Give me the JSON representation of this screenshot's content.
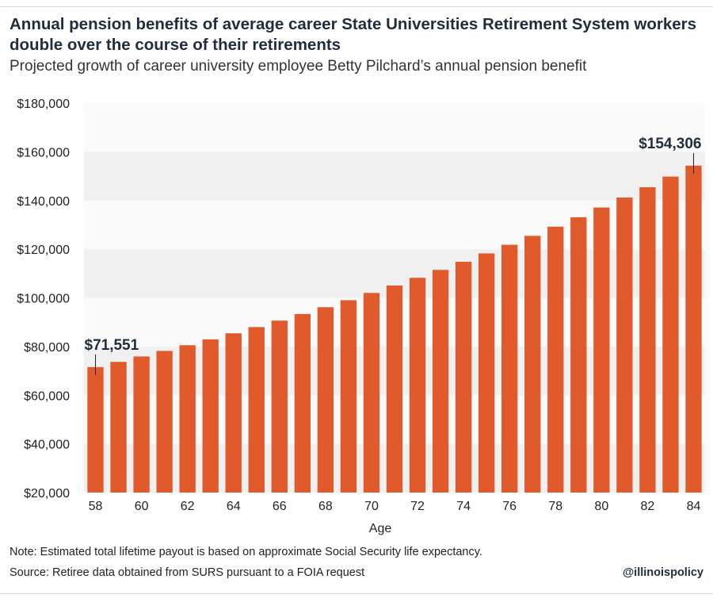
{
  "title": "Annual pension benefits of average career State Universities Retirement System workers double over the course of their retirements",
  "subtitle": "Projected growth of career university employee Betty Pilchard’s annual pension benefit",
  "note": "Note: Estimated total lifetime payout is based on approximate Social Security life expectancy.",
  "source": "Source: Retiree data obtained from SURS pursuant to a FOIA request",
  "handle": "@illinoispolicy",
  "chart_data": {
    "type": "bar",
    "title": "",
    "xlabel": "Age",
    "ylabel": "",
    "ylim": [
      20000,
      180000
    ],
    "yticks": [
      20000,
      40000,
      60000,
      80000,
      100000,
      120000,
      140000,
      160000,
      180000
    ],
    "ytick_labels": [
      "$20,000",
      "$40,000",
      "$60,000",
      "$80,000",
      "$100,000",
      "$120,000",
      "$140,000",
      "$160,000",
      "$180,000"
    ],
    "categories": [
      58,
      59,
      60,
      61,
      62,
      63,
      64,
      65,
      66,
      67,
      68,
      69,
      70,
      71,
      72,
      73,
      74,
      75,
      76,
      77,
      78,
      79,
      80,
      81,
      82,
      83,
      84
    ],
    "xtick_labels": [
      "58",
      "60",
      "62",
      "64",
      "66",
      "68",
      "70",
      "72",
      "74",
      "76",
      "78",
      "80",
      "82",
      "84"
    ],
    "values": [
      71551,
      73698,
      75909,
      78186,
      80532,
      82948,
      85436,
      87999,
      90639,
      93358,
      96159,
      99044,
      102015,
      105076,
      108228,
      111475,
      114819,
      118264,
      121812,
      125466,
      129230,
      133107,
      137100,
      141213,
      145450,
      149813,
      154306
    ],
    "annotations": [
      {
        "label": "$71,551",
        "category": 58,
        "value": 71551
      },
      {
        "label": "$154,306",
        "category": 84,
        "value": 154306
      }
    ],
    "bar_color": "#e05a2c",
    "band_color": "#f0f0f0",
    "grid": true
  }
}
